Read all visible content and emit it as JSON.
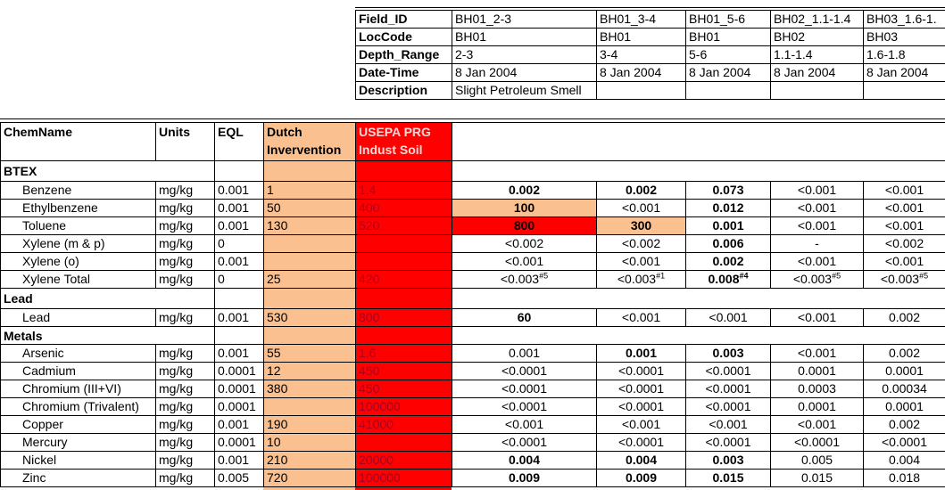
{
  "colors": {
    "dutch": "#fac090",
    "usepa": "#ff0000",
    "usepa_text": "#a50021",
    "usepa_header_text": "#ffd7d7"
  },
  "header_table": {
    "rows": [
      [
        "Field_ID",
        "BH01_2-3",
        "BH01_3-4",
        "BH01_5-6",
        "BH02_1.1-1.4",
        "BH03_1.6-1."
      ],
      [
        "LocCode",
        "BH01",
        "BH01",
        "BH01",
        "BH02",
        "BH03"
      ],
      [
        "Depth_Range",
        "2-3",
        "3-4",
        "5-6",
        "1.1-1.4",
        "1.6-1.8"
      ],
      [
        "Date-Time",
        "8 Jan 2004",
        "8 Jan 2004",
        "8 Jan 2004",
        "8 Jan 2004",
        "8 Jan 2004"
      ],
      [
        "Description",
        "Slight Petroleum Smell",
        null,
        null,
        null,
        null
      ]
    ]
  },
  "table": {
    "columns": [
      "ChemName",
      "Units",
      "EQL",
      "Dutch Invervention",
      "USEPA PRG Indust Soil"
    ],
    "groups": [
      {
        "name": "BTEX",
        "rows": [
          {
            "chem": "Benzene",
            "units": "mg/kg",
            "eql": "0.001",
            "dutch": "1",
            "usepa": "1.4",
            "results": [
              {
                "text": "0.002",
                "bold": true
              },
              {
                "text": "0.002",
                "bold": true
              },
              {
                "text": "0.073",
                "bold": true
              },
              "<0.001",
              "<0.001"
            ]
          },
          {
            "chem": "Ethylbenzene",
            "units": "mg/kg",
            "eql": "0.001",
            "dutch": "50",
            "usepa": "400",
            "results": [
              {
                "text": "100",
                "bold": true,
                "highlight": "dutch"
              },
              "<0.001",
              {
                "text": "0.012",
                "bold": true
              },
              "<0.001",
              "<0.001"
            ]
          },
          {
            "chem": "Toluene",
            "units": "mg/kg",
            "eql": "0.001",
            "dutch": "130",
            "usepa": "520",
            "results": [
              {
                "text": "800",
                "bold": true,
                "highlight": "usepa"
              },
              {
                "text": "300",
                "bold": true,
                "highlight": "dutch"
              },
              {
                "text": "0.001",
                "bold": true
              },
              "<0.001",
              "<0.001"
            ]
          },
          {
            "chem": "Xylene (m & p)",
            "units": "mg/kg",
            "eql": "0",
            "dutch": null,
            "usepa": null,
            "results": [
              "<0.002",
              "<0.002",
              {
                "text": "0.006",
                "bold": true
              },
              "-",
              "<0.002"
            ]
          },
          {
            "chem": "Xylene (o)",
            "units": "mg/kg",
            "eql": "0.001",
            "dutch": null,
            "usepa": null,
            "results": [
              "<0.001",
              "<0.001",
              {
                "text": "0.002",
                "bold": true
              },
              "<0.001",
              "<0.001"
            ]
          },
          {
            "chem": "Xylene Total",
            "units": "mg/kg",
            "eql": "0",
            "dutch": "25",
            "usepa": "420",
            "results": [
              {
                "text": "<0.003",
                "sup": "#5"
              },
              {
                "text": "<0.003",
                "sup": "#1"
              },
              {
                "text": "0.008",
                "sup": "#4",
                "bold": true
              },
              {
                "text": "<0.003",
                "sup": "#5"
              },
              {
                "text": "<0.003",
                "sup": "#5"
              }
            ]
          }
        ]
      },
      {
        "name": "Lead",
        "rows": [
          {
            "chem": "Lead",
            "units": "mg/kg",
            "eql": "0.001",
            "dutch": "530",
            "usepa": "800",
            "results": [
              {
                "text": "60",
                "bold": true
              },
              "<0.001",
              "<0.001",
              "<0.001",
              "0.002"
            ]
          }
        ]
      },
      {
        "name": "Metals",
        "rows": [
          {
            "chem": "Arsenic",
            "units": "mg/kg",
            "eql": "0.001",
            "dutch": "55",
            "usepa": "1.6",
            "results": [
              "0.001",
              {
                "text": "0.001",
                "bold": true
              },
              {
                "text": "0.003",
                "bold": true
              },
              "<0.001",
              "0.002"
            ]
          },
          {
            "chem": "Cadmium",
            "units": "mg/kg",
            "eql": "0.0001",
            "dutch": "12",
            "usepa": "450",
            "results": [
              "<0.0001",
              "<0.0001",
              "<0.0001",
              "0.0001",
              "0.0001"
            ]
          },
          {
            "chem": "Chromium (III+VI)",
            "units": "mg/kg",
            "eql": "0.0001",
            "dutch": "380",
            "usepa": "450",
            "results": [
              "<0.0001",
              "<0.0001",
              "<0.0001",
              "0.0003",
              "0.00034"
            ]
          },
          {
            "chem": "Chromium (Trivalent)",
            "units": "mg/kg",
            "eql": "0.0001",
            "dutch": null,
            "usepa": "100000",
            "results": [
              "<0.0001",
              "<0.0001",
              "<0.0001",
              "0.0001",
              "0.0001"
            ]
          },
          {
            "chem": "Copper",
            "units": "mg/kg",
            "eql": "0.001",
            "dutch": "190",
            "usepa": "41000",
            "results": [
              "<0.001",
              "<0.001",
              "<0.001",
              "<0.001",
              "0.002"
            ]
          },
          {
            "chem": "Mercury",
            "units": "mg/kg",
            "eql": "0.0001",
            "dutch": "10",
            "usepa": null,
            "results": [
              "<0.0001",
              "<0.0001",
              "<0.0001",
              "<0.0001",
              "<0.0001"
            ]
          },
          {
            "chem": "Nickel",
            "units": "mg/kg",
            "eql": "0.001",
            "dutch": "210",
            "usepa": "20000",
            "results": [
              {
                "text": "0.004",
                "bold": true
              },
              {
                "text": "0.004",
                "bold": true
              },
              {
                "text": "0.003",
                "bold": true
              },
              "0.005",
              "0.004"
            ]
          },
          {
            "chem": "Zinc",
            "units": "mg/kg",
            "eql": "0.005",
            "dutch": "720",
            "usepa": "100000",
            "results": [
              {
                "text": "0.009",
                "bold": true
              },
              {
                "text": "0.009",
                "bold": true
              },
              {
                "text": "0.015",
                "bold": true
              },
              "0.015",
              "0.018"
            ]
          }
        ]
      }
    ]
  }
}
